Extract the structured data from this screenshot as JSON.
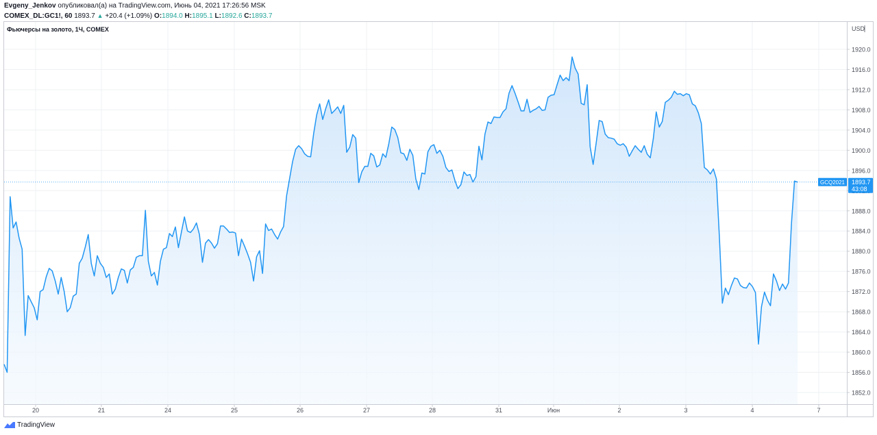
{
  "header": {
    "author": "Evgeny_Jenkov",
    "published_text": "опубликовал(а) на TradingView.com, Июнь 04, 2021 17:26:56 MSK",
    "symbol": "COMEX_DL:GC1!, 60",
    "last": "1893.7",
    "change": "+20.4 (+1.09%)",
    "o_label": "O:",
    "o": "1894.0",
    "h_label": "H:",
    "h": "1895.1",
    "l_label": "L:",
    "l": "1892.6",
    "c_label": "C:",
    "c": "1893.7"
  },
  "chart_title": "Фьючерсы на золото, 1Ч, COMEX",
  "footer": {
    "brand": "TradingView",
    "icon": "tradingview-logo-icon"
  },
  "colors": {
    "line": "#2196f3",
    "fill_top": "#cfe5fb",
    "fill_bottom": "#f3f9fe",
    "grid": "#eef0f3",
    "price_label": "#2196f3"
  },
  "chart_data": {
    "type": "area",
    "title": "Фьючерсы на золото, 1Ч, COMEX",
    "unit_label": "USD",
    "y_ticks": [
      "1852.0",
      "1856.0",
      "1860.0",
      "1864.0",
      "1868.0",
      "1872.0",
      "1876.0",
      "1880.0",
      "1884.0",
      "1888.0",
      "1892.0",
      "1896.0",
      "1900.0",
      "1904.0",
      "1908.0",
      "1912.0",
      "1916.0",
      "1920.0"
    ],
    "ylim": [
      1849.5,
      1923.5
    ],
    "x_tick_labels": [
      "20",
      "21",
      "24",
      "25",
      "26",
      "27",
      "28",
      "31",
      "Июн",
      "2",
      "3",
      "4",
      "7"
    ],
    "grid": true,
    "current_price": {
      "value": 1893.7,
      "label": "1893.7",
      "symbol": "GCQ2021",
      "countdown": "43:08"
    },
    "series": [
      {
        "values": [
          1857.6,
          1856.0,
          1890.8,
          1884.6,
          1885.8,
          1882.6,
          1880.4,
          1863.3,
          1871.2,
          1870.0,
          1868.8,
          1866.4,
          1872.0,
          1872.4,
          1874.9,
          1876.6,
          1876.1,
          1874.1,
          1871.5,
          1874.8,
          1872.0,
          1868.0,
          1868.8,
          1871.1,
          1871.5,
          1877.6,
          1878.6,
          1880.8,
          1883.3,
          1877.6,
          1875.1,
          1879.1,
          1877.6,
          1876.8,
          1874.8,
          1875.5,
          1871.5,
          1872.5,
          1874.8,
          1876.5,
          1876.2,
          1873.7,
          1876.3,
          1876.8,
          1878.8,
          1879.1,
          1879.1,
          1888.1,
          1878.0,
          1875.1,
          1875.8,
          1873.3,
          1878.0,
          1880.4,
          1880.7,
          1883.5,
          1882.9,
          1884.8,
          1880.7,
          1883.8,
          1886.8,
          1884.0,
          1883.7,
          1884.4,
          1885.6,
          1883.3,
          1877.8,
          1881.6,
          1882.3,
          1881.6,
          1880.6,
          1881.5,
          1885.0,
          1885.0,
          1884.4,
          1883.7,
          1883.8,
          1883.6,
          1879.1,
          1882.4,
          1881.0,
          1879.5,
          1877.8,
          1874.1,
          1878.9,
          1880.1,
          1875.6,
          1885.4,
          1884.1,
          1884.4,
          1883.3,
          1882.4,
          1883.8,
          1884.9,
          1891.0,
          1894.4,
          1897.8,
          1900.2,
          1900.9,
          1900.3,
          1899.3,
          1898.8,
          1898.7,
          1903.3,
          1907.0,
          1909.2,
          1906.1,
          1908.2,
          1910.0,
          1907.3,
          1907.9,
          1908.6,
          1907.3,
          1908.9,
          1899.6,
          1900.6,
          1903.1,
          1902.4,
          1893.6,
          1895.7,
          1896.8,
          1896.8,
          1899.4,
          1898.9,
          1896.7,
          1897.1,
          1899.3,
          1898.6,
          1901.3,
          1904.6,
          1904.1,
          1902.5,
          1899.5,
          1899.3,
          1898.0,
          1900.2,
          1899.0,
          1894.3,
          1892.2,
          1895.5,
          1895.3,
          1899.7,
          1900.8,
          1901.1,
          1899.4,
          1900.0,
          1898.8,
          1896.6,
          1895.8,
          1896.1,
          1894.0,
          1892.4,
          1893.2,
          1895.7,
          1895.0,
          1895.2,
          1893.7,
          1894.8,
          1900.8,
          1898.1,
          1903.2,
          1905.6,
          1905.3,
          1906.6,
          1906.5,
          1906.5,
          1907.6,
          1908.2,
          1911.3,
          1912.8,
          1911.3,
          1909.6,
          1907.8,
          1907.8,
          1910.1,
          1907.5,
          1907.9,
          1908.2,
          1908.7,
          1907.9,
          1908.0,
          1910.5,
          1910.9,
          1911.0,
          1913.0,
          1914.9,
          1913.8,
          1914.4,
          1913.8,
          1918.5,
          1916.3,
          1915.1,
          1909.3,
          1909.0,
          1913.0,
          1900.7,
          1897.2,
          1901.4,
          1905.9,
          1905.7,
          1903.2,
          1902.5,
          1902.4,
          1902.2,
          1901.3,
          1901.0,
          1901.3,
          1900.6,
          1898.8,
          1899.9,
          1900.9,
          1900.2,
          1899.6,
          1900.9,
          1899.2,
          1898.5,
          1902.3,
          1907.6,
          1904.6,
          1905.7,
          1909.5,
          1909.9,
          1910.5,
          1911.7,
          1911.1,
          1911.2,
          1910.8,
          1911.2,
          1911.0,
          1909.2,
          1908.8,
          1907.4,
          1905.3,
          1896.6,
          1896.1,
          1895.3,
          1896.3,
          1894.3,
          1882.7,
          1869.7,
          1872.7,
          1871.4,
          1873.2,
          1874.7,
          1874.5,
          1873.2,
          1872.8,
          1872.7,
          1873.7,
          1873.0,
          1871.8,
          1861.6,
          1869.0,
          1871.9,
          1870.3,
          1869.2,
          1875.5,
          1874.1,
          1872.2,
          1873.5,
          1872.5,
          1873.7,
          1885.6,
          1893.9,
          1893.7
        ]
      }
    ]
  }
}
